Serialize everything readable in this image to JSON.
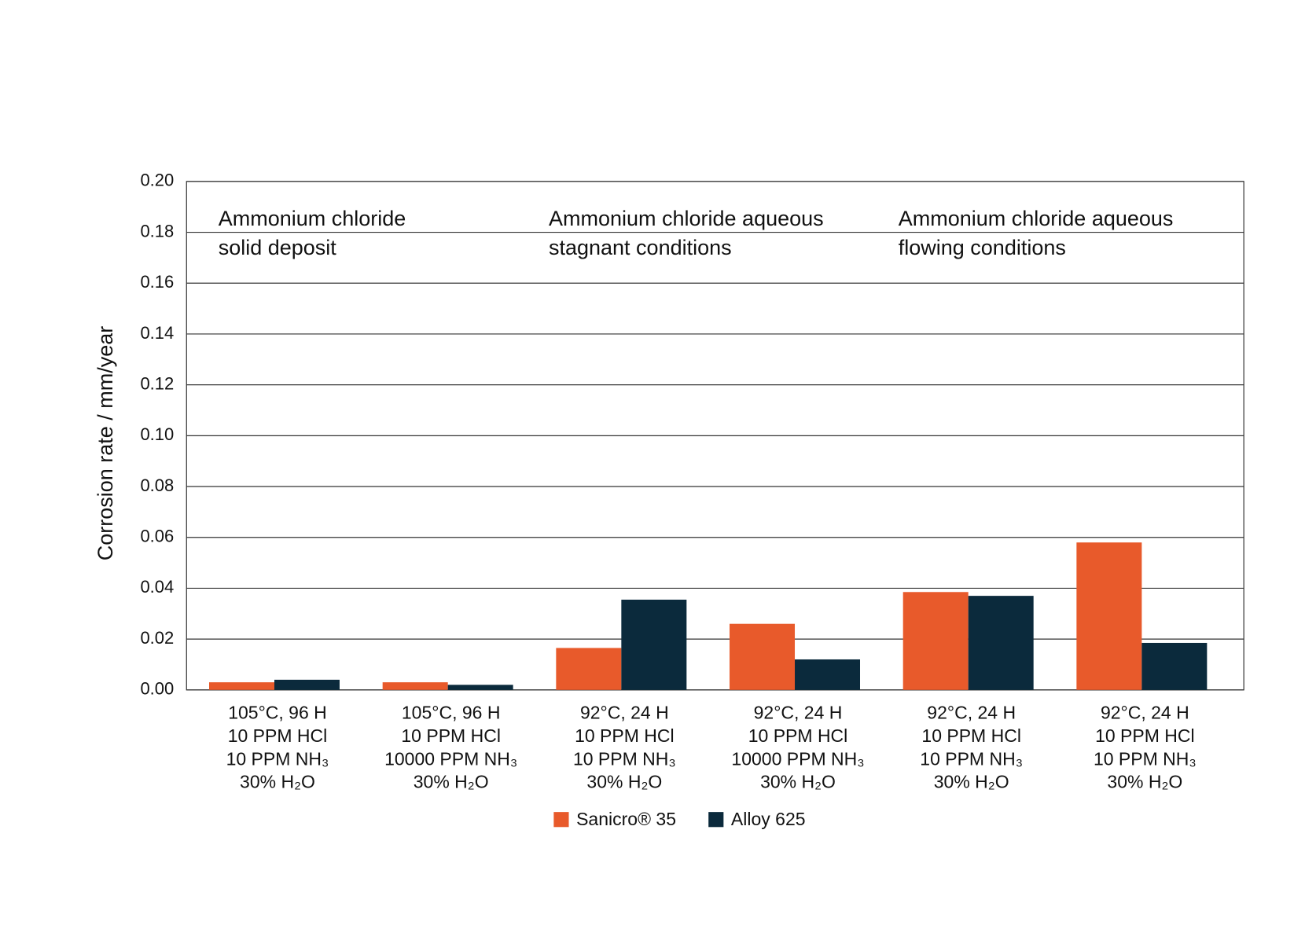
{
  "chart_data": {
    "type": "bar",
    "y_label": "Corrosion rate / mm/year",
    "categories": [
      [
        "105°C, 96 H",
        "10 PPM HCl",
        "10 PPM NH₃",
        "30% H₂O"
      ],
      [
        "105°C, 96 H",
        "10 PPM HCl",
        "10000 PPM NH₃",
        "30% H₂O"
      ],
      [
        "92°C, 24 H",
        "10 PPM HCl",
        "10 PPM NH₃",
        "30% H₂O"
      ],
      [
        "92°C, 24 H",
        "10 PPM HCl",
        "10000 PPM NH₃",
        "30% H₂O"
      ],
      [
        "92°C, 24 H",
        "10 PPM HCl",
        "10 PPM NH₃",
        "30% H₂O"
      ],
      [
        "92°C, 24 H",
        "10 PPM HCl",
        "10 PPM NH₃",
        "30% H₂O"
      ]
    ],
    "series": [
      {
        "name": "Sanicro® 35",
        "color": "#e85a2b",
        "values": [
          0.003,
          0.003,
          0.0165,
          0.026,
          0.0385,
          0.058
        ]
      },
      {
        "name": "Alloy 625",
        "color": "#0b2a3c",
        "values": [
          0.004,
          0.002,
          0.0355,
          0.012,
          0.037,
          0.0185
        ]
      }
    ],
    "annotations": [
      [
        "Ammonium chloride",
        "solid deposit"
      ],
      [
        "Ammonium chloride  aqueous",
        "stagnant conditions"
      ],
      [
        "Ammonium chloride  aqueous",
        "flowing conditions"
      ]
    ],
    "ylim": [
      0,
      0.2
    ],
    "yticks": [
      {
        "value": 0,
        "label": "0.00"
      },
      {
        "value": 0.02,
        "label": "0.02"
      },
      {
        "value": 0.04,
        "label": "0.04"
      },
      {
        "value": 0.06,
        "label": "0.06"
      },
      {
        "value": 0.08,
        "label": "0.08"
      },
      {
        "value": 0.1,
        "label": "0.10"
      },
      {
        "value": 0.12,
        "label": "0.12"
      },
      {
        "value": 0.14,
        "label": "0.14"
      },
      {
        "value": 0.16,
        "label": "0.16"
      },
      {
        "value": 0.18,
        "label": "0.18"
      },
      {
        "value": 0.2,
        "label": "0.20"
      }
    ],
    "grid": true,
    "legend": "bottom"
  }
}
